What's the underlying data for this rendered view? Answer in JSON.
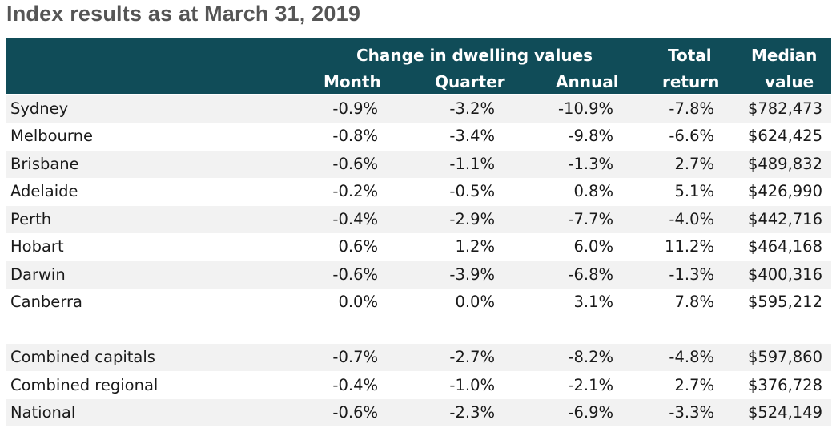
{
  "title": "Index results as at March 31, 2019",
  "header": {
    "group_label": "Change in dwelling values",
    "month": "Month",
    "quarter": "Quarter",
    "annual": "Annual",
    "total_line1": "Total",
    "total_line2": "return",
    "median_line1": "Median",
    "median_line2": "value"
  },
  "rows": [
    {
      "name": "Sydney",
      "month": "-0.9%",
      "quarter": "-3.2%",
      "annual": "-10.9%",
      "total": "-7.8%",
      "median": "$782,473"
    },
    {
      "name": "Melbourne",
      "month": "-0.8%",
      "quarter": "-3.4%",
      "annual": "-9.8%",
      "total": "-6.6%",
      "median": "$624,425"
    },
    {
      "name": "Brisbane",
      "month": "-0.6%",
      "quarter": "-1.1%",
      "annual": "-1.3%",
      "total": "2.7%",
      "median": "$489,832"
    },
    {
      "name": "Adelaide",
      "month": "-0.2%",
      "quarter": "-0.5%",
      "annual": "0.8%",
      "total": "5.1%",
      "median": "$426,990"
    },
    {
      "name": "Perth",
      "month": "-0.4%",
      "quarter": "-2.9%",
      "annual": "-7.7%",
      "total": "-4.0%",
      "median": "$442,716"
    },
    {
      "name": "Hobart",
      "month": "0.6%",
      "quarter": "1.2%",
      "annual": "6.0%",
      "total": "11.2%",
      "median": "$464,168"
    },
    {
      "name": "Darwin",
      "month": "-0.6%",
      "quarter": "-3.9%",
      "annual": "-6.8%",
      "total": "-1.3%",
      "median": "$400,316"
    },
    {
      "name": "Canberra",
      "month": "0.0%",
      "quarter": "0.0%",
      "annual": "3.1%",
      "total": "7.8%",
      "median": "$595,212"
    }
  ],
  "summary_rows": [
    {
      "name": "Combined capitals",
      "month": "-0.7%",
      "quarter": "-2.7%",
      "annual": "-8.2%",
      "total": "-4.8%",
      "median": "$597,860"
    },
    {
      "name": "Combined regional",
      "month": "-0.4%",
      "quarter": "-1.0%",
      "annual": "-2.1%",
      "total": "2.7%",
      "median": "$376,728"
    },
    {
      "name": "National",
      "month": "-0.6%",
      "quarter": "-2.3%",
      "annual": "-6.9%",
      "total": "-3.3%",
      "median": "$524,149"
    }
  ],
  "colors": {
    "header_bg": "#104c58",
    "header_text": "#ffffff",
    "row_shade": "#f2f2f2",
    "title_text": "#555555"
  }
}
